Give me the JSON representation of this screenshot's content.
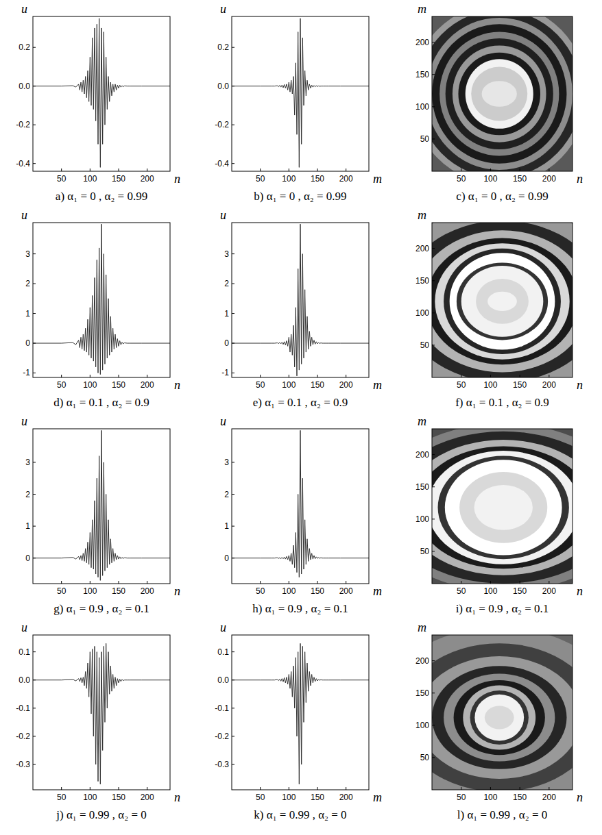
{
  "chart_data": [
    {
      "type": "line",
      "caption": "a) α₁ = 0 , α₂ = 0.99",
      "xlabel": "n",
      "ylabel": "u",
      "color": "#333333",
      "xlim": [
        0,
        240
      ],
      "xticks": [
        50,
        100,
        150,
        200
      ],
      "ylim": [
        -0.44,
        0.36
      ],
      "yticks": [
        0.2,
        {
          "value": 0,
          "label": "0.0"
        },
        -0.2,
        -0.4
      ],
      "x": [
        0,
        50,
        70,
        75,
        80,
        82,
        84,
        86,
        88,
        90,
        92,
        94,
        96,
        98,
        100,
        102,
        104,
        106,
        108,
        110,
        112,
        114,
        116,
        118,
        120,
        122,
        124,
        126,
        128,
        130,
        132,
        134,
        136,
        138,
        140,
        142,
        144,
        146,
        148,
        150,
        152,
        154,
        156,
        158,
        160,
        165,
        170,
        190,
        240
      ],
      "values": [
        0,
        0,
        0.002,
        -0.005,
        0.01,
        -0.02,
        0.02,
        -0.03,
        0.03,
        -0.04,
        0.05,
        -0.06,
        0.08,
        -0.08,
        0.15,
        -0.1,
        0.25,
        -0.12,
        0.3,
        -0.18,
        0.32,
        -0.3,
        0.35,
        -0.42,
        0.3,
        -0.3,
        0.28,
        -0.2,
        0.15,
        -0.12,
        0.05,
        -0.08,
        0.02,
        -0.05,
        0.01,
        -0.03,
        0.01,
        -0.02,
        0.005,
        -0.01,
        0.005,
        -0.005,
        0.002,
        -0.003,
        0.001,
        0,
        0,
        0,
        0
      ]
    },
    {
      "type": "line",
      "caption": "b) α₁ = 0 , α₂ = 0.99",
      "xlabel": "m",
      "ylabel": "u",
      "color": "#333333",
      "xlim": [
        0,
        240
      ],
      "xticks": [
        50,
        100,
        150,
        200
      ],
      "ylim": [
        -0.44,
        0.36
      ],
      "yticks": [
        0.2,
        {
          "value": 0,
          "label": "0.0"
        },
        -0.2,
        -0.4
      ],
      "x": [
        0,
        50,
        70,
        75,
        80,
        82,
        84,
        86,
        88,
        90,
        92,
        94,
        96,
        98,
        100,
        102,
        104,
        106,
        108,
        110,
        112,
        114,
        116,
        118,
        120,
        122,
        124,
        126,
        128,
        130,
        132,
        134,
        136,
        138,
        140,
        142,
        144,
        146,
        148,
        150,
        152,
        154,
        156,
        158,
        160,
        165,
        170,
        190,
        240
      ],
      "values": [
        0,
        0,
        0,
        0,
        0.002,
        -0.003,
        0.004,
        -0.005,
        0.005,
        -0.008,
        0.008,
        -0.01,
        0.01,
        -0.02,
        0.02,
        -0.03,
        0.03,
        -0.04,
        0.05,
        -0.15,
        0.12,
        -0.25,
        0.28,
        -0.42,
        0.35,
        -0.3,
        0.25,
        -0.1,
        0.08,
        -0.05,
        0.03,
        -0.02,
        0.01,
        -0.01,
        0.005,
        -0.005,
        0.003,
        -0.003,
        0.002,
        -0.002,
        0.001,
        -0.001,
        0,
        0,
        0,
        0,
        0,
        0,
        0
      ]
    },
    {
      "type": "contour",
      "caption": "c) α₁ = 0 , α₂ = 0.99",
      "xlabel": "n",
      "ylabel": "m",
      "xlim": [
        0,
        240
      ],
      "xticks": [
        50,
        100,
        150,
        200
      ],
      "ylim": [
        0,
        240
      ],
      "yticks": [
        50,
        100,
        150,
        200
      ],
      "cx": 115,
      "cy": 120,
      "bands": [
        {
          "rx": 400,
          "ry": 400,
          "level": 0.35
        },
        {
          "rx": 150,
          "ry": 140,
          "level": 0.6
        },
        {
          "rx": 140,
          "ry": 130,
          "level": 0.15
        },
        {
          "rx": 125,
          "ry": 118,
          "level": 0.55
        },
        {
          "rx": 115,
          "ry": 108,
          "level": 0.1
        },
        {
          "rx": 102,
          "ry": 96,
          "level": 0.5
        },
        {
          "rx": 92,
          "ry": 86,
          "level": 0.12
        },
        {
          "rx": 80,
          "ry": 75,
          "level": 0.6
        },
        {
          "rx": 70,
          "ry": 64,
          "level": 0.1
        },
        {
          "rx": 58,
          "ry": 54,
          "level": 0.95
        },
        {
          "rx": 48,
          "ry": 42,
          "level": 0.8
        },
        {
          "rx": 30,
          "ry": 20,
          "level": 0.9
        }
      ]
    },
    {
      "type": "line",
      "caption": "d) α₁ = 0.1 , α₂ = 0.9",
      "xlabel": "n",
      "ylabel": "u",
      "color": "#333333",
      "xlim": [
        0,
        240
      ],
      "xticks": [
        50,
        100,
        150,
        200
      ],
      "ylim": [
        -1.15,
        4.05
      ],
      "yticks": [
        -1,
        0,
        1,
        2,
        3
      ],
      "x": [
        0,
        50,
        70,
        75,
        80,
        82,
        84,
        86,
        88,
        90,
        92,
        94,
        96,
        98,
        100,
        102,
        104,
        106,
        108,
        110,
        112,
        114,
        116,
        118,
        120,
        122,
        124,
        126,
        128,
        130,
        132,
        134,
        136,
        138,
        140,
        142,
        144,
        146,
        148,
        150,
        152,
        154,
        156,
        158,
        160,
        165,
        170,
        190,
        240
      ],
      "values": [
        0,
        0,
        0.02,
        -0.05,
        0.1,
        -0.15,
        0.2,
        -0.2,
        0.3,
        -0.25,
        0.5,
        -0.3,
        0.8,
        -0.4,
        1.2,
        -0.5,
        1.6,
        -0.6,
        2.2,
        -0.8,
        2.8,
        -1.0,
        3.2,
        -1.05,
        4.0,
        -0.9,
        3.0,
        -0.7,
        2.3,
        -0.5,
        1.5,
        -0.4,
        0.9,
        -0.3,
        0.5,
        -0.2,
        0.3,
        -0.15,
        0.15,
        -0.1,
        0.08,
        -0.05,
        0.03,
        -0.02,
        0.01,
        0,
        0,
        0,
        0
      ]
    },
    {
      "type": "line",
      "caption": "e) α₁ = 0.1 , α₂ = 0.9",
      "xlabel": "m",
      "ylabel": "u",
      "color": "#333333",
      "xlim": [
        0,
        240
      ],
      "xticks": [
        50,
        100,
        150,
        200
      ],
      "ylim": [
        -1.15,
        4.05
      ],
      "yticks": [
        -1,
        0,
        1,
        2,
        3
      ],
      "x": [
        0,
        50,
        70,
        75,
        80,
        82,
        84,
        86,
        88,
        90,
        92,
        94,
        96,
        98,
        100,
        102,
        104,
        106,
        108,
        110,
        112,
        114,
        116,
        118,
        120,
        122,
        124,
        126,
        128,
        130,
        132,
        134,
        136,
        138,
        140,
        142,
        144,
        146,
        148,
        150,
        152,
        154,
        156,
        158,
        160,
        165,
        170,
        190,
        240
      ],
      "values": [
        0,
        0,
        0,
        0,
        0.01,
        -0.01,
        0.02,
        -0.02,
        0.03,
        -0.04,
        0.05,
        -0.06,
        0.08,
        -0.1,
        0.2,
        -0.3,
        0.3,
        -0.4,
        0.6,
        -0.8,
        1.2,
        -1.1,
        2.5,
        -0.9,
        4.0,
        -0.7,
        3.0,
        -0.5,
        1.8,
        -0.3,
        0.9,
        -0.2,
        0.4,
        -0.1,
        0.2,
        -0.05,
        0.1,
        -0.03,
        0.05,
        -0.02,
        0.02,
        -0.01,
        0.01,
        0,
        0,
        0,
        0,
        0,
        0
      ]
    },
    {
      "type": "contour",
      "caption": "f) α₁ = 0.1 , α₂ = 0.9",
      "xlabel": "n",
      "ylabel": "m",
      "xlim": [
        0,
        240
      ],
      "xticks": [
        50,
        100,
        150,
        200
      ],
      "ylim": [
        0,
        240
      ],
      "yticks": [
        50,
        100,
        150,
        200
      ],
      "cx": 120,
      "cy": 118,
      "bands": [
        {
          "rx": 400,
          "ry": 400,
          "level": 0.4
        },
        {
          "rx": 200,
          "ry": 150,
          "level": 0.6
        },
        {
          "rx": 175,
          "ry": 125,
          "level": 0.15
        },
        {
          "rx": 150,
          "ry": 110,
          "level": 0.7
        },
        {
          "rx": 130,
          "ry": 98,
          "level": 0.1
        },
        {
          "rx": 115,
          "ry": 90,
          "level": 0.85
        },
        {
          "rx": 100,
          "ry": 82,
          "level": 0.15
        },
        {
          "rx": 90,
          "ry": 75,
          "level": 1.0
        },
        {
          "rx": 78,
          "ry": 60,
          "level": 0.2
        },
        {
          "rx": 70,
          "ry": 55,
          "level": 0.95
        },
        {
          "rx": 45,
          "ry": 35,
          "level": 0.85
        },
        {
          "rx": 25,
          "ry": 15,
          "level": 0.95
        }
      ]
    },
    {
      "type": "line",
      "caption": "g) α₁ = 0.9 , α₂ = 0.1",
      "xlabel": "n",
      "ylabel": "u",
      "color": "#333333",
      "xlim": [
        0,
        240
      ],
      "xticks": [
        50,
        100,
        150,
        200
      ],
      "ylim": [
        -0.8,
        4.05
      ],
      "yticks": [
        0,
        1,
        2,
        3
      ],
      "x": [
        0,
        50,
        70,
        75,
        80,
        82,
        84,
        86,
        88,
        90,
        92,
        94,
        96,
        98,
        100,
        102,
        104,
        106,
        108,
        110,
        112,
        114,
        116,
        118,
        120,
        122,
        124,
        126,
        128,
        130,
        132,
        134,
        136,
        138,
        140,
        142,
        144,
        146,
        148,
        150,
        152,
        154,
        156,
        158,
        160,
        165,
        170,
        190,
        240
      ],
      "values": [
        0,
        0,
        0.02,
        -0.03,
        0.05,
        -0.05,
        0.08,
        -0.08,
        0.15,
        -0.1,
        0.3,
        -0.15,
        0.5,
        -0.2,
        0.8,
        -0.3,
        1.2,
        -0.35,
        1.8,
        -0.5,
        2.5,
        -0.6,
        3.2,
        -0.7,
        4.0,
        -0.55,
        3.0,
        -0.4,
        2.0,
        -0.3,
        1.2,
        -0.2,
        0.6,
        -0.15,
        0.3,
        -0.1,
        0.15,
        -0.05,
        0.08,
        -0.03,
        0.04,
        -0.02,
        0.02,
        -0.01,
        0.01,
        0,
        0,
        0,
        0
      ]
    },
    {
      "type": "line",
      "caption": "h) α₁ = 0.9 , α₂ = 0.1",
      "xlabel": "m",
      "ylabel": "u",
      "color": "#333333",
      "xlim": [
        0,
        240
      ],
      "xticks": [
        50,
        100,
        150,
        200
      ],
      "ylim": [
        -0.8,
        4.05
      ],
      "yticks": [
        0,
        1,
        2,
        3
      ],
      "x": [
        0,
        50,
        70,
        75,
        80,
        82,
        84,
        86,
        88,
        90,
        92,
        94,
        96,
        98,
        100,
        102,
        104,
        106,
        108,
        110,
        112,
        114,
        116,
        118,
        120,
        122,
        124,
        126,
        128,
        130,
        132,
        134,
        136,
        138,
        140,
        142,
        144,
        146,
        148,
        150,
        152,
        154,
        156,
        158,
        160,
        165,
        170,
        190,
        240
      ],
      "values": [
        0,
        0,
        0,
        0,
        0.01,
        -0.01,
        0.01,
        -0.02,
        0.02,
        -0.02,
        0.03,
        -0.03,
        0.05,
        -0.05,
        0.08,
        -0.1,
        0.15,
        -0.2,
        0.4,
        -0.3,
        0.8,
        -0.45,
        2.0,
        -0.6,
        4.0,
        -0.5,
        2.5,
        -0.35,
        1.2,
        -0.2,
        0.6,
        -0.1,
        0.3,
        -0.05,
        0.15,
        -0.03,
        0.08,
        -0.02,
        0.04,
        -0.01,
        0.02,
        -0.01,
        0.01,
        0,
        0,
        0,
        0,
        0,
        0
      ]
    },
    {
      "type": "contour",
      "caption": "i) α₁ = 0.9 , α₂ = 0.1",
      "xlabel": "n",
      "ylabel": "m",
      "xlim": [
        0,
        240
      ],
      "xticks": [
        50,
        100,
        150,
        200
      ],
      "ylim": [
        0,
        240
      ],
      "yticks": [
        50,
        100,
        150,
        200
      ],
      "cx": 122,
      "cy": 118,
      "bands": [
        {
          "rx": 400,
          "ry": 400,
          "level": 0.3
        },
        {
          "rx": 220,
          "ry": 130,
          "level": 0.5
        },
        {
          "rx": 200,
          "ry": 118,
          "level": 0.15
        },
        {
          "rx": 170,
          "ry": 105,
          "level": 0.7
        },
        {
          "rx": 150,
          "ry": 95,
          "level": 0.1
        },
        {
          "rx": 130,
          "ry": 88,
          "level": 0.95
        },
        {
          "rx": 112,
          "ry": 80,
          "level": 0.2
        },
        {
          "rx": 100,
          "ry": 74,
          "level": 1.0
        },
        {
          "rx": 75,
          "ry": 55,
          "level": 0.85
        },
        {
          "rx": 50,
          "ry": 35,
          "level": 0.95
        }
      ]
    },
    {
      "type": "line",
      "caption": "j) α₁ = 0.99 , α₂ = 0",
      "xlabel": "n",
      "ylabel": "u",
      "color": "#333333",
      "xlim": [
        0,
        240
      ],
      "xticks": [
        50,
        100,
        150,
        200
      ],
      "ylim": [
        -0.39,
        0.16
      ],
      "yticks": [
        0.1,
        {
          "value": 0,
          "label": "0.0"
        },
        -0.1,
        -0.2,
        -0.3
      ],
      "x": [
        0,
        50,
        70,
        75,
        80,
        82,
        84,
        86,
        88,
        90,
        92,
        94,
        96,
        98,
        100,
        102,
        104,
        106,
        108,
        110,
        112,
        114,
        116,
        118,
        120,
        122,
        124,
        126,
        128,
        130,
        132,
        134,
        136,
        138,
        140,
        142,
        144,
        146,
        148,
        150,
        152,
        154,
        156,
        158,
        160,
        165,
        170,
        190,
        240
      ],
      "values": [
        0,
        0,
        0.002,
        -0.003,
        0.005,
        -0.005,
        0.008,
        -0.01,
        0.01,
        -0.02,
        0.03,
        -0.03,
        0.06,
        -0.06,
        0.1,
        -0.12,
        0.11,
        -0.2,
        0.12,
        -0.3,
        0.1,
        -0.36,
        0.08,
        -0.37,
        0.1,
        -0.25,
        0.12,
        -0.15,
        0.13,
        -0.1,
        0.1,
        -0.05,
        0.05,
        -0.04,
        0.02,
        -0.03,
        0.01,
        -0.02,
        0.005,
        -0.01,
        0.003,
        -0.005,
        0.002,
        -0.002,
        0,
        0,
        0,
        0,
        0
      ]
    },
    {
      "type": "line",
      "caption": "k) α₁ = 0.99 , α₂ = 0",
      "xlabel": "m",
      "ylabel": "u",
      "color": "#333333",
      "xlim": [
        0,
        240
      ],
      "xticks": [
        50,
        100,
        150,
        200
      ],
      "ylim": [
        -0.39,
        0.16
      ],
      "yticks": [
        0.1,
        {
          "value": 0,
          "label": "0.0"
        },
        -0.1,
        -0.2,
        -0.3
      ],
      "x": [
        0,
        50,
        70,
        75,
        80,
        82,
        84,
        86,
        88,
        90,
        92,
        94,
        96,
        98,
        100,
        102,
        104,
        106,
        108,
        110,
        112,
        114,
        116,
        118,
        120,
        122,
        124,
        126,
        128,
        130,
        132,
        134,
        136,
        138,
        140,
        142,
        144,
        146,
        148,
        150,
        152,
        154,
        156,
        158,
        160,
        165,
        170,
        190,
        240
      ],
      "values": [
        0,
        0,
        0,
        0,
        0.002,
        -0.002,
        0.003,
        -0.004,
        0.005,
        -0.006,
        0.008,
        -0.01,
        0.01,
        -0.015,
        0.02,
        -0.03,
        0.03,
        -0.06,
        0.05,
        -0.1,
        0.08,
        -0.2,
        0.1,
        -0.37,
        0.13,
        -0.3,
        0.12,
        -0.15,
        0.1,
        -0.08,
        0.06,
        -0.04,
        0.03,
        -0.02,
        0.02,
        -0.01,
        0.01,
        -0.005,
        0.005,
        -0.003,
        0.002,
        -0.001,
        0.001,
        0,
        0,
        0,
        0,
        0,
        0
      ]
    },
    {
      "type": "contour",
      "caption": "l) α₁ = 0.99 , α₂ = 0",
      "xlabel": "n",
      "ylabel": "m",
      "xlim": [
        0,
        240
      ],
      "xticks": [
        50,
        100,
        150,
        200
      ],
      "ylim": [
        0,
        240
      ],
      "yticks": [
        50,
        100,
        150,
        200
      ],
      "cx": 115,
      "cy": 112,
      "bands": [
        {
          "rx": 400,
          "ry": 400,
          "level": 0.4
        },
        {
          "rx": 210,
          "ry": 140,
          "level": 0.55
        },
        {
          "rx": 170,
          "ry": 115,
          "level": 0.25
        },
        {
          "rx": 140,
          "ry": 95,
          "level": 0.6
        },
        {
          "rx": 115,
          "ry": 80,
          "level": 0.15
        },
        {
          "rx": 95,
          "ry": 68,
          "level": 0.55
        },
        {
          "rx": 78,
          "ry": 58,
          "level": 0.1
        },
        {
          "rx": 62,
          "ry": 50,
          "level": 0.7
        },
        {
          "rx": 50,
          "ry": 42,
          "level": 0.2
        },
        {
          "rx": 42,
          "ry": 36,
          "level": 0.95
        },
        {
          "rx": 25,
          "ry": 18,
          "level": 0.85
        }
      ]
    }
  ]
}
